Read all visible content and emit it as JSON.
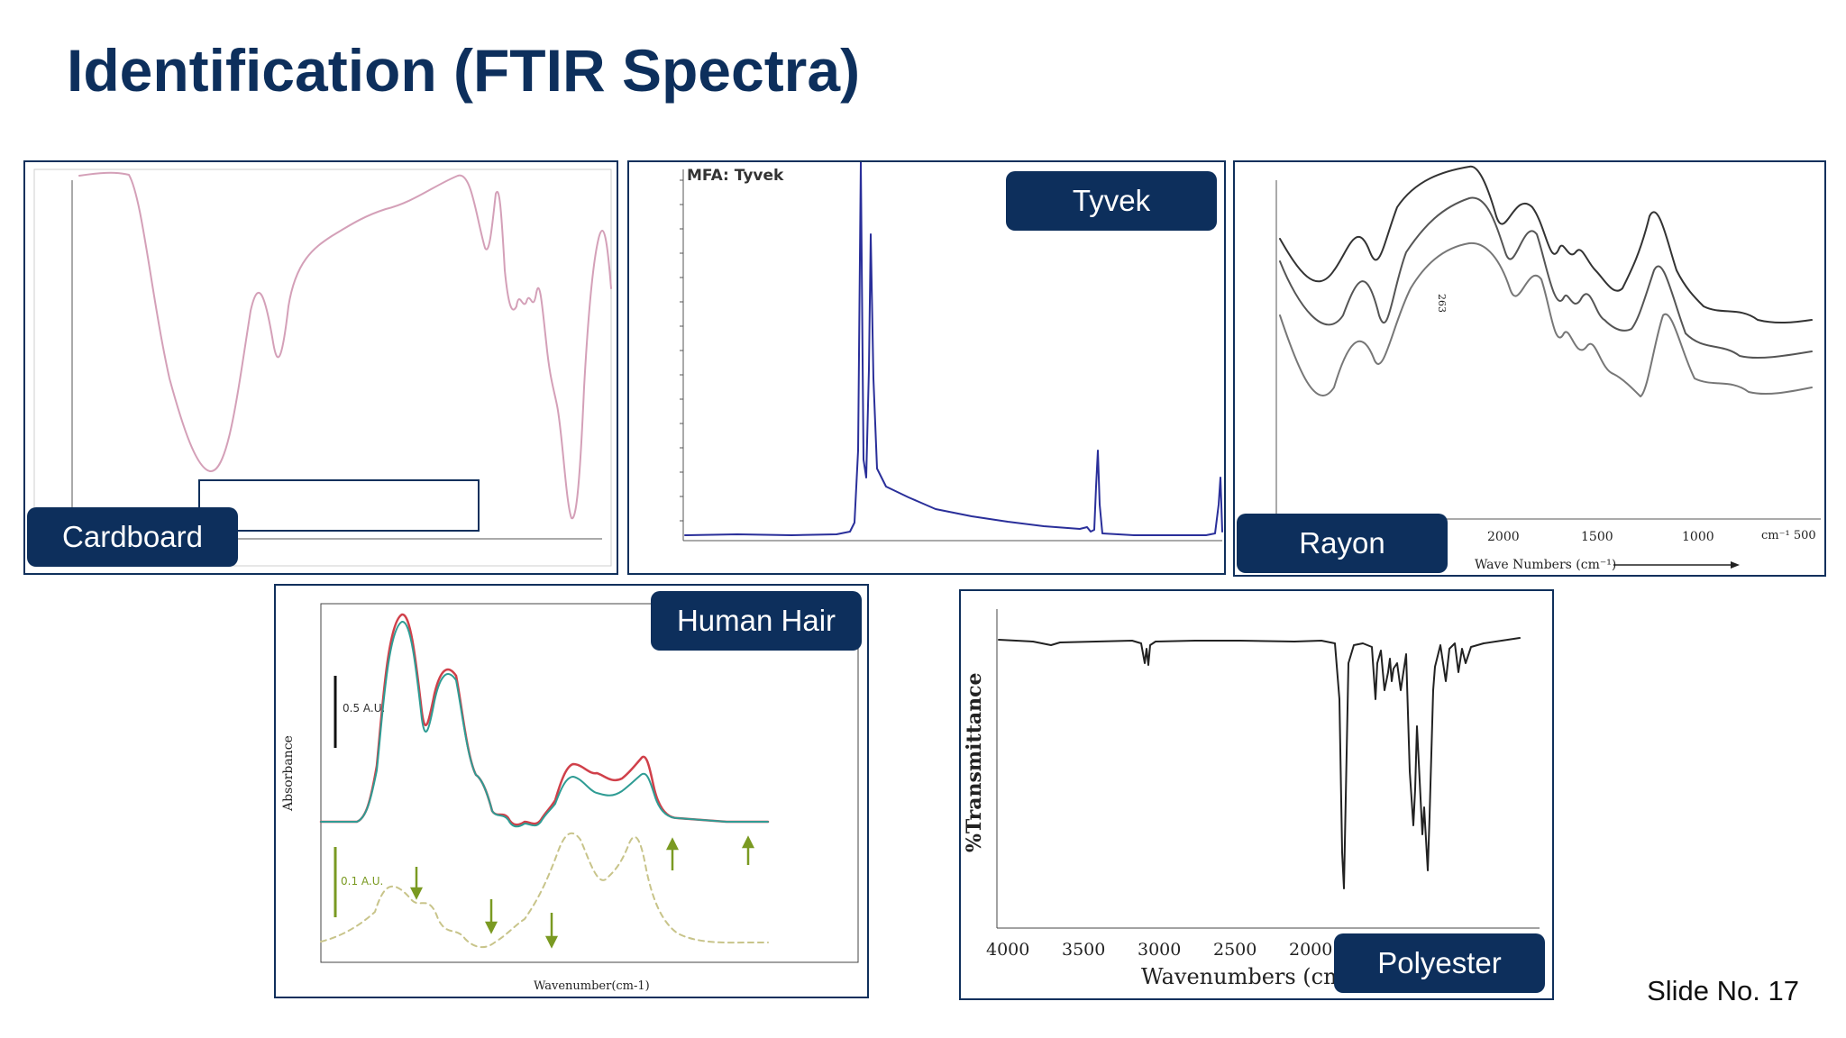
{
  "slide": {
    "title": "Identification (FTIR Spectra)",
    "slide_number": "Slide No. 17"
  },
  "panels": {
    "cardboard": {
      "tag": "Cardboard"
    },
    "tyvek": {
      "tag": "Tyvek",
      "plot_title": "MFA: Tyvek"
    },
    "rayon": {
      "tag": "Rayon",
      "x_axis_label": "Wave Numbers (cm⁻¹)",
      "x_ticks": [
        "2000",
        "1500",
        "1000",
        "cm⁻¹ 500"
      ]
    },
    "human_hair": {
      "tag": "Human Hair",
      "y_axis_label": "Absorbance",
      "x_axis_label": "Wavenumber(cm-1)",
      "scale_top": "0.5 A.U.",
      "scale_bottom": "0.1 A.U."
    },
    "polyester": {
      "tag": "Polyester",
      "y_axis_label": "%Transmittance",
      "x_axis_label": "Wavenumbers (cm⁻¹)",
      "x_ticks": [
        "4000",
        "3500",
        "3000",
        "2500",
        "2000"
      ]
    }
  },
  "colors": {
    "title": "#0d2f5c",
    "tag_background": "#0d2f5c",
    "panel_border": "#10305c",
    "tyvek_spectrum": "#2a2f9a",
    "hair_red": "#d0404a",
    "hair_teal": "#2f9c94",
    "hair_dashed": "#c8c48a",
    "arrow_green": "#7a9a22"
  }
}
